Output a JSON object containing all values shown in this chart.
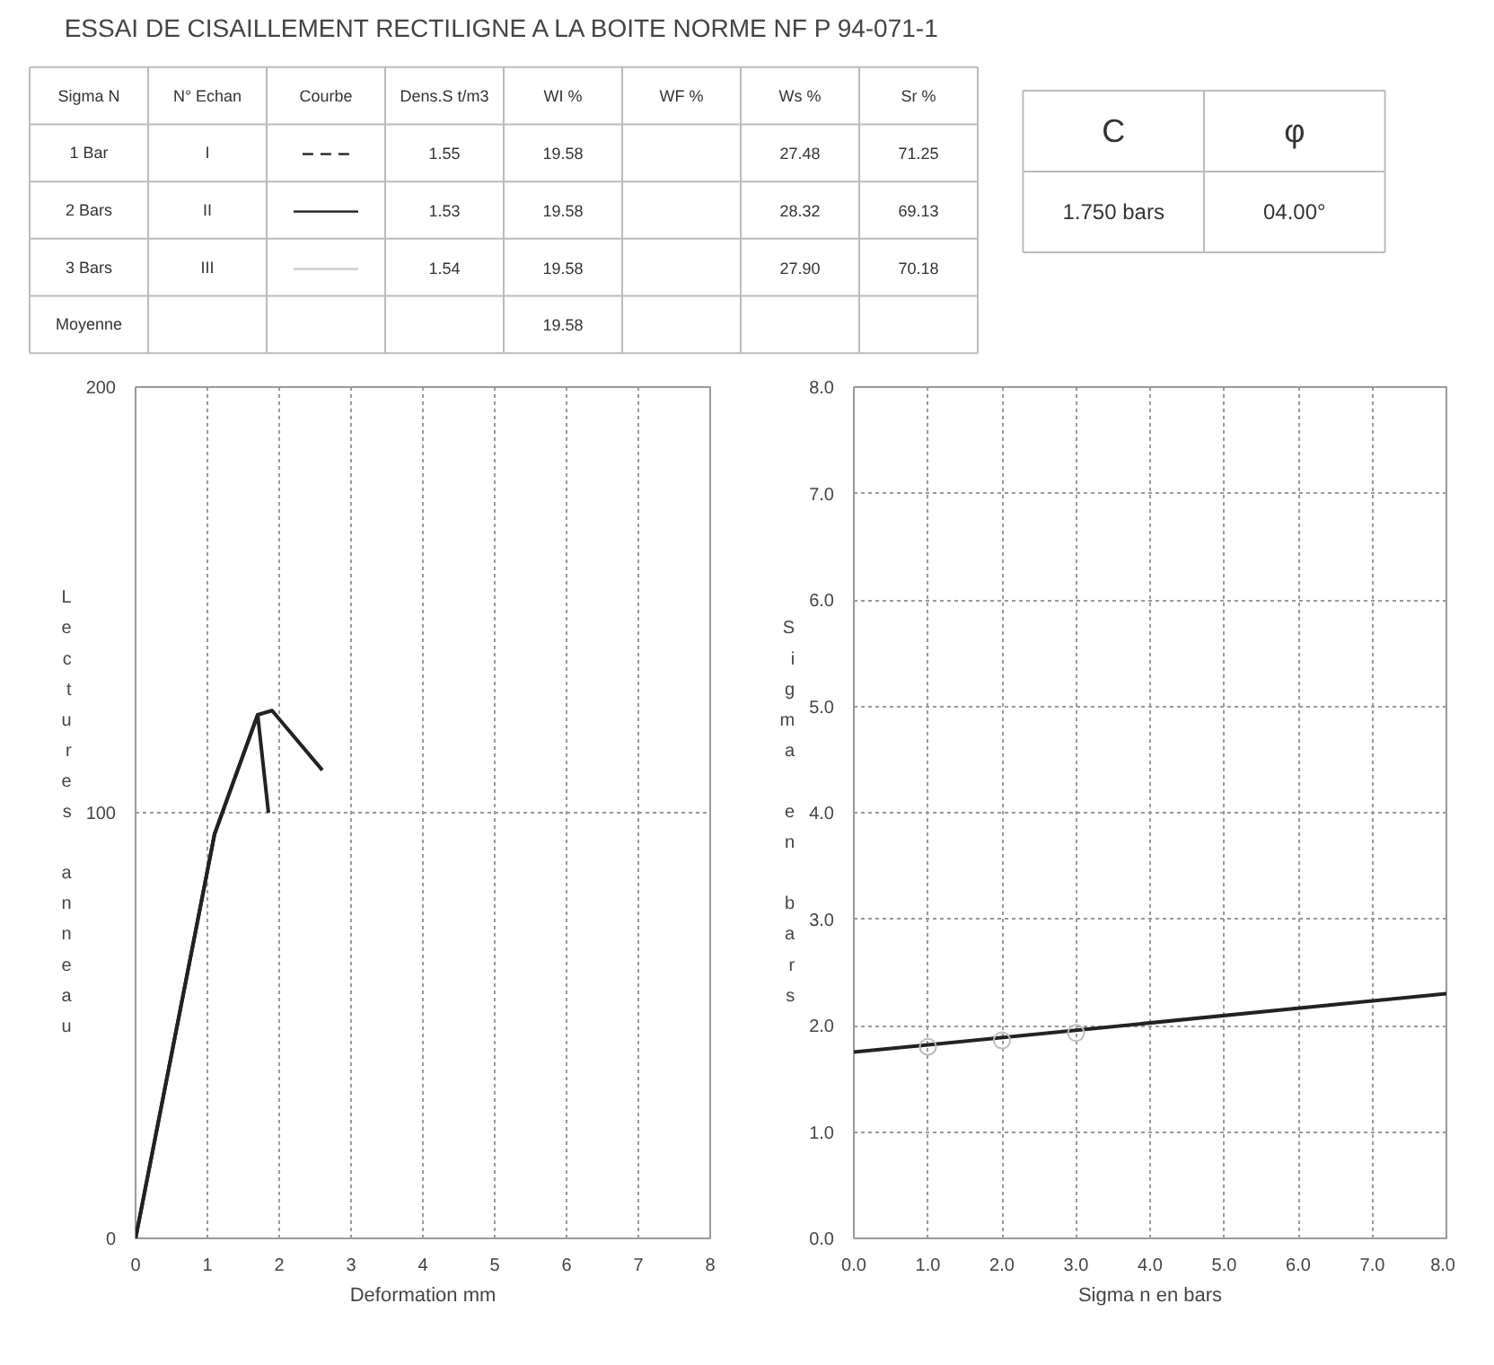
{
  "chart_data": [
    {
      "type": "other",
      "title": "ESSAI DE CISAILLEMENT RECTILIGNE A LA BOITE NORME NF P 94-071-1",
      "categories": [
        "Sigma N",
        "N° Echan",
        "Courbe",
        "Dens.S t/m3",
        "WI %",
        "WF %",
        "Ws %",
        "Sr %"
      ],
      "y_categories": [
        "1 Bar",
        "2 Bars",
        "3 Bars",
        "Moyenne"
      ],
      "cell_labels": [
        [
          "I",
          "– – –",
          "1.55",
          "19.58",
          null,
          "27.48",
          "71.25"
        ],
        [
          "II",
          "———",
          "1.53",
          "19.58",
          null,
          "28.32",
          "69.13"
        ],
        [
          "III",
          "———",
          "1.54",
          "19.58",
          null,
          "27.90",
          "70.18"
        ],
        [
          null,
          null,
          null,
          "19.58",
          null,
          null,
          null
        ]
      ],
      "colors": [
        "#222222",
        "#222222",
        "#cccccc"
      ]
    },
    {
      "type": "other",
      "categories": [
        "C",
        "φ"
      ],
      "cell_labels": [
        [
          "1.750 bars",
          "04.00°"
        ]
      ]
    },
    {
      "type": "line",
      "xlabel": "Deformation mm",
      "ylabel": "Lectures anneau",
      "xlim": [
        0,
        8
      ],
      "ylim": [
        0,
        200
      ],
      "xticks": [
        0,
        1,
        2,
        3,
        4,
        5,
        6,
        7,
        8
      ],
      "yticks": [
        0,
        100,
        200
      ],
      "grid": true,
      "line_style": "solid",
      "series": [
        {
          "color": "#222222",
          "x": [
            0,
            1.1,
            1.7,
            1.9,
            2.6
          ],
          "values": [
            0,
            95,
            123,
            124,
            110
          ]
        },
        {
          "color": "#222222",
          "x": [
            0,
            1.1,
            1.7,
            1.85
          ],
          "values": [
            0,
            95,
            123,
            100
          ]
        }
      ]
    },
    {
      "type": "line",
      "xlabel": "Sigma n en bars",
      "ylabel": "Sigma en bars",
      "xlim": [
        0,
        8
      ],
      "ylim": [
        0,
        8
      ],
      "xticks": [
        {
          "value": 0,
          "label": "0.0"
        },
        {
          "value": 1,
          "label": "1.0"
        },
        {
          "value": 2,
          "label": "2.0"
        },
        {
          "value": 3,
          "label": "3.0"
        },
        {
          "value": 4,
          "label": "4.0"
        },
        {
          "value": 5,
          "label": "5.0"
        },
        {
          "value": 6,
          "label": "6.0"
        },
        {
          "value": 7,
          "label": "7.0"
        },
        {
          "value": 8,
          "label": "8.0"
        }
      ],
      "yticks": [
        {
          "value": 0,
          "label": "0.0"
        },
        {
          "value": 1,
          "label": "1.0"
        },
        {
          "value": 2,
          "label": "2.0"
        },
        {
          "value": 3,
          "label": "3.0"
        },
        {
          "value": 4,
          "label": "4.0"
        },
        {
          "value": 5,
          "label": "5.0"
        },
        {
          "value": 6,
          "label": "6.0"
        },
        {
          "value": 7,
          "label": "7.0"
        },
        {
          "value": 8,
          "label": "8.0"
        }
      ],
      "grid": true,
      "line_style": "solid",
      "series": [
        {
          "color": "#222222",
          "x": [
            0,
            8
          ],
          "values": [
            1.75,
            2.3
          ]
        },
        {
          "type": "scatter",
          "marker": "circle",
          "color": "#bbbbbb",
          "x": [
            1,
            2,
            3
          ],
          "values": [
            1.8,
            1.86,
            1.93
          ]
        }
      ]
    }
  ]
}
